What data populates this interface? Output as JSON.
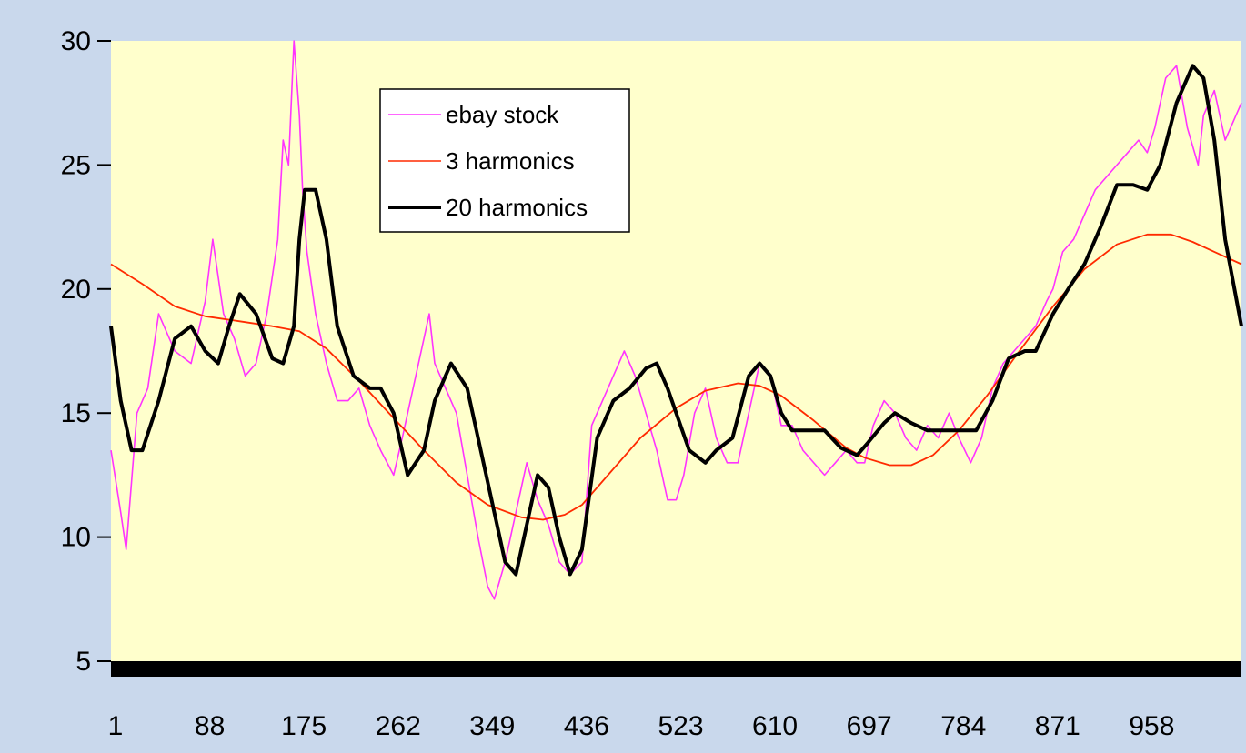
{
  "chart_data": {
    "type": "line",
    "title": "",
    "xlabel": "",
    "ylabel": "",
    "xlim": [
      1,
      1045
    ],
    "ylim": [
      5,
      30
    ],
    "x_ticks": [
      1,
      88,
      175,
      262,
      349,
      436,
      523,
      610,
      697,
      784,
      871,
      958
    ],
    "y_ticks": [
      5,
      10,
      15,
      20,
      25,
      30
    ],
    "grid": false,
    "legend_position": "top-center",
    "colors": {
      "plot_bg": "#ffffcc",
      "page_bg": "#c9d8ec",
      "ebay": "#ff33ff",
      "h3": "#ff2a00",
      "h20": "#000000"
    },
    "series": [
      {
        "name": "ebay stock",
        "x": [
          1,
          10,
          15,
          25,
          35,
          45,
          60,
          75,
          88,
          95,
          100,
          105,
          115,
          125,
          135,
          145,
          155,
          160,
          165,
          170,
          175,
          178,
          182,
          190,
          200,
          210,
          220,
          230,
          240,
          250,
          262,
          270,
          280,
          290,
          295,
          300,
          310,
          320,
          330,
          340,
          349,
          355,
          365,
          375,
          385,
          395,
          405,
          415,
          425,
          436,
          445,
          455,
          465,
          475,
          485,
          495,
          505,
          515,
          523,
          530,
          540,
          550,
          560,
          570,
          580,
          590,
          600,
          610,
          620,
          630,
          640,
          650,
          660,
          670,
          680,
          690,
          697,
          705,
          715,
          725,
          735,
          745,
          755,
          765,
          775,
          784,
          795,
          805,
          815,
          825,
          835,
          845,
          855,
          865,
          871,
          880,
          890,
          900,
          910,
          920,
          930,
          940,
          950,
          958,
          965,
          975,
          985,
          995,
          1005,
          1010,
          1015,
          1020,
          1030,
          1040,
          1045
        ],
        "values": [
          13.5,
          11.0,
          9.5,
          15.0,
          16.0,
          19.0,
          17.5,
          17.0,
          19.5,
          22.0,
          20.5,
          19.0,
          18.0,
          16.5,
          17.0,
          19.0,
          22.0,
          26.0,
          25.0,
          30.0,
          27.0,
          24.0,
          21.5,
          19.0,
          17.0,
          15.5,
          15.5,
          16.0,
          14.5,
          13.5,
          12.5,
          14.0,
          16.0,
          18.0,
          19.0,
          17.0,
          16.0,
          15.0,
          12.5,
          10.0,
          8.0,
          7.5,
          9.0,
          11.0,
          13.0,
          11.5,
          10.5,
          9.0,
          8.5,
          9.0,
          14.5,
          15.5,
          16.5,
          17.5,
          16.5,
          15.0,
          13.5,
          11.5,
          11.5,
          12.5,
          15.0,
          16.0,
          14.0,
          13.0,
          13.0,
          15.0,
          17.0,
          16.5,
          14.5,
          14.5,
          13.5,
          13.0,
          12.5,
          13.0,
          13.5,
          13.0,
          13.0,
          14.5,
          15.5,
          15.0,
          14.0,
          13.5,
          14.5,
          14.0,
          15.0,
          14.0,
          13.0,
          14.0,
          16.0,
          17.0,
          17.5,
          18.0,
          18.5,
          19.5,
          20.0,
          21.5,
          22.0,
          23.0,
          24.0,
          24.5,
          25.0,
          25.5,
          26.0,
          25.5,
          26.5,
          28.5,
          29.0,
          26.5,
          25.0,
          27.0,
          27.5,
          28.0,
          26.0,
          27.0,
          27.5
        ]
      },
      {
        "name": "3 harmonics",
        "x": [
          1,
          30,
          60,
          88,
          120,
          150,
          175,
          200,
          230,
          262,
          290,
          320,
          349,
          380,
          400,
          420,
          436,
          460,
          490,
          523,
          550,
          580,
          600,
          620,
          650,
          680,
          697,
          720,
          740,
          760,
          784,
          810,
          840,
          871,
          900,
          930,
          958,
          980,
          1000,
          1020,
          1045
        ],
        "values": [
          21.0,
          20.2,
          19.3,
          18.9,
          18.7,
          18.5,
          18.3,
          17.6,
          16.3,
          14.8,
          13.5,
          12.2,
          11.3,
          10.8,
          10.7,
          10.9,
          11.3,
          12.5,
          14.0,
          15.2,
          15.9,
          16.2,
          16.1,
          15.7,
          14.7,
          13.6,
          13.2,
          12.9,
          12.9,
          13.3,
          14.3,
          15.7,
          17.5,
          19.3,
          20.8,
          21.8,
          22.2,
          22.2,
          21.9,
          21.5,
          21.0
        ]
      },
      {
        "name": "20 harmonics",
        "x": [
          1,
          10,
          20,
          30,
          45,
          60,
          75,
          88,
          100,
          110,
          120,
          135,
          150,
          160,
          170,
          175,
          180,
          190,
          200,
          210,
          225,
          240,
          250,
          262,
          275,
          290,
          300,
          315,
          330,
          345,
          355,
          365,
          375,
          385,
          395,
          405,
          415,
          425,
          436,
          450,
          465,
          480,
          495,
          505,
          515,
          523,
          535,
          550,
          560,
          575,
          590,
          600,
          610,
          620,
          630,
          645,
          660,
          675,
          690,
          700,
          715,
          725,
          740,
          755,
          770,
          784,
          800,
          815,
          830,
          845,
          855,
          871,
          885,
          900,
          915,
          930,
          945,
          958,
          970,
          985,
          1000,
          1010,
          1020,
          1030,
          1045
        ],
        "values": [
          18.5,
          15.5,
          13.5,
          13.5,
          15.5,
          18.0,
          18.5,
          17.5,
          17.0,
          18.5,
          19.8,
          19.0,
          17.2,
          17.0,
          18.5,
          22.0,
          24.0,
          24.0,
          22.0,
          18.5,
          16.5,
          16.0,
          16.0,
          15.0,
          12.5,
          13.5,
          15.5,
          17.0,
          16.0,
          13.0,
          11.0,
          9.0,
          8.5,
          10.5,
          12.5,
          12.0,
          10.0,
          8.5,
          9.5,
          14.0,
          15.5,
          16.0,
          16.8,
          17.0,
          16.0,
          15.0,
          13.5,
          13.0,
          13.5,
          14.0,
          16.5,
          17.0,
          16.5,
          15.0,
          14.3,
          14.3,
          14.3,
          13.6,
          13.3,
          13.8,
          14.6,
          15.0,
          14.6,
          14.3,
          14.3,
          14.3,
          14.3,
          15.5,
          17.2,
          17.5,
          17.5,
          19.0,
          20.0,
          21.0,
          22.5,
          24.2,
          24.2,
          24.0,
          25.0,
          27.5,
          29.0,
          28.5,
          26.0,
          22.0,
          18.5
        ]
      }
    ]
  }
}
